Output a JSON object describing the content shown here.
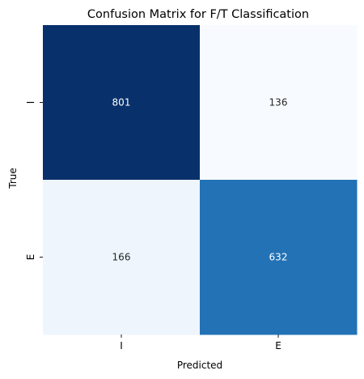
{
  "chart_data": {
    "type": "heatmap",
    "title": "Confusion Matrix for F/T Classification",
    "xlabel": "Predicted",
    "ylabel": "True",
    "x_categories": [
      "I",
      "E"
    ],
    "y_categories": [
      "I",
      "E"
    ],
    "values": [
      [
        801,
        136
      ],
      [
        166,
        632
      ]
    ],
    "colormap": "Blues",
    "colorbar": false,
    "cell_colors": [
      [
        "#08306b",
        "#f7fbff"
      ],
      [
        "#eef5fd",
        "#2272b5"
      ]
    ],
    "annotation_colors": [
      [
        "#ffffff",
        "#262626"
      ],
      [
        "#262626",
        "#ffffff"
      ]
    ]
  }
}
